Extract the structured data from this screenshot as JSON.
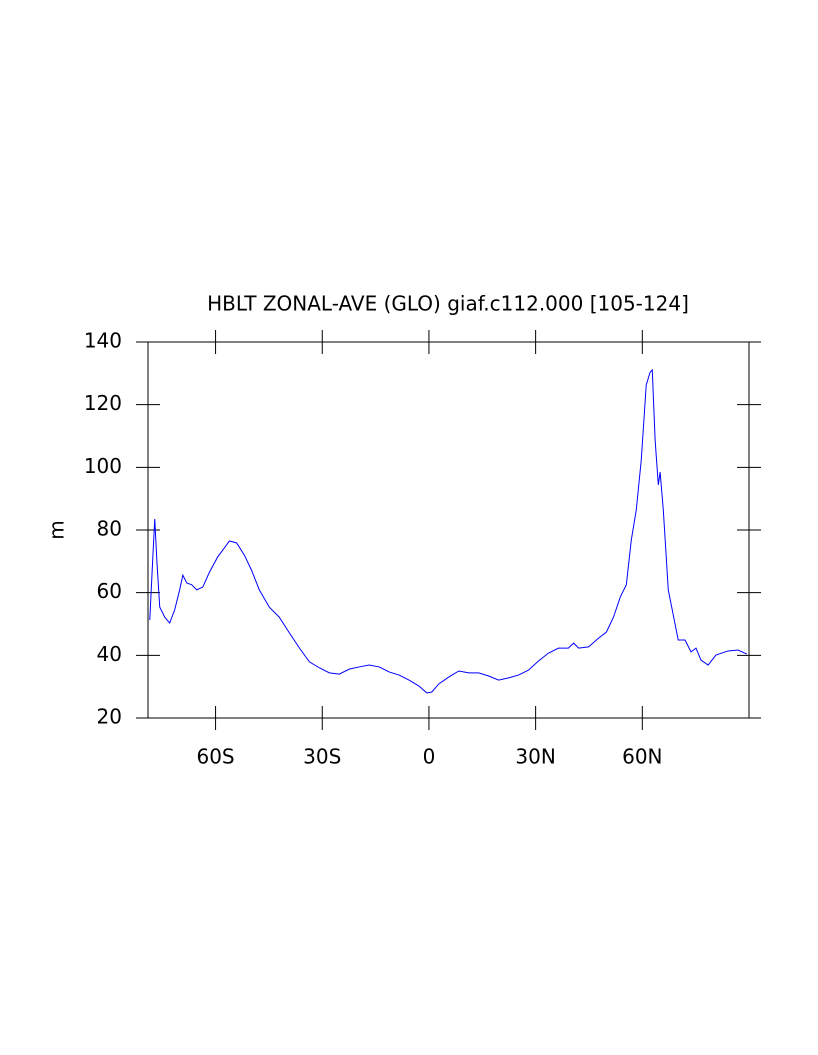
{
  "chart_data": {
    "type": "line",
    "title": "HBLT ZONAL-AVE (GLO) giaf.c112.000 [105-124]",
    "y_label": "m",
    "x": [
      -78.5,
      -77.7,
      -77.1,
      -76.5,
      -75.7,
      -74.3,
      -72.9,
      -71.5,
      -70.1,
      -69.2,
      -68.1,
      -66.7,
      -65.3,
      -63.6,
      -61.7,
      -59.4,
      -57.5,
      -56.1,
      -54.1,
      -51.9,
      -49.9,
      -47.7,
      -44.9,
      -42.1,
      -39.2,
      -36.4,
      -33.6,
      -30.8,
      -28,
      -25.2,
      -22.4,
      -19.6,
      -16.8,
      -14,
      -11.2,
      -8.4,
      -5.6,
      -2.8,
      -0.6,
      0.8,
      2.8,
      5.6,
      8.4,
      11.2,
      14,
      16.8,
      19.6,
      22.4,
      25.2,
      28,
      30.8,
      33.6,
      36.4,
      39.2,
      40.7,
      42.1,
      44.9,
      47.7,
      49.9,
      51.9,
      53.8,
      55.5,
      56.9,
      58.3,
      59.7,
      61.1,
      62.2,
      62.8,
      63.6,
      64.5,
      65,
      65.9,
      67.3,
      68.7,
      70.1,
      72,
      73.7,
      75.1,
      76.5,
      78.5,
      80.7,
      84.1,
      86.9,
      89.4
    ],
    "series": [
      {
        "name": "HBLT",
        "color": "#0000ff",
        "values": [
          51.3,
          70,
          83.5,
          70,
          55.4,
          52.2,
          50.3,
          54.5,
          60.9,
          65.6,
          63.1,
          62.5,
          60.9,
          61.8,
          66.6,
          71.4,
          74.3,
          76.5,
          75.9,
          72,
          67.2,
          60.9,
          55.4,
          52.2,
          47.1,
          42.3,
          37.9,
          36,
          34.4,
          34,
          35.6,
          36.3,
          36.9,
          36.3,
          34.7,
          33.7,
          32.1,
          30.2,
          28,
          28.3,
          30.9,
          33.1,
          35,
          34.4,
          34.4,
          33.4,
          32.1,
          32.8,
          33.7,
          35.3,
          38.2,
          40.7,
          42.3,
          42.3,
          43.9,
          42.3,
          42.7,
          45.5,
          47.4,
          52.2,
          58.6,
          62.5,
          76.8,
          86.4,
          102.3,
          126.3,
          130.4,
          131.1,
          108.7,
          94.4,
          98.5,
          86.4,
          60.9,
          52.9,
          44.9,
          44.9,
          41.1,
          42.3,
          38.5,
          36.9,
          40.1,
          41.4,
          41.7,
          40.4
        ]
      }
    ],
    "xlim": [
      -79,
      90
    ],
    "xticks": [
      {
        "value": -60,
        "label": "60S"
      },
      {
        "value": -30,
        "label": "30S"
      },
      0,
      {
        "value": 30,
        "label": "30N"
      },
      {
        "value": 60,
        "label": "60N"
      }
    ],
    "ylim": [
      20,
      140
    ],
    "yticks": [
      20,
      40,
      60,
      80,
      100,
      120,
      140
    ]
  }
}
